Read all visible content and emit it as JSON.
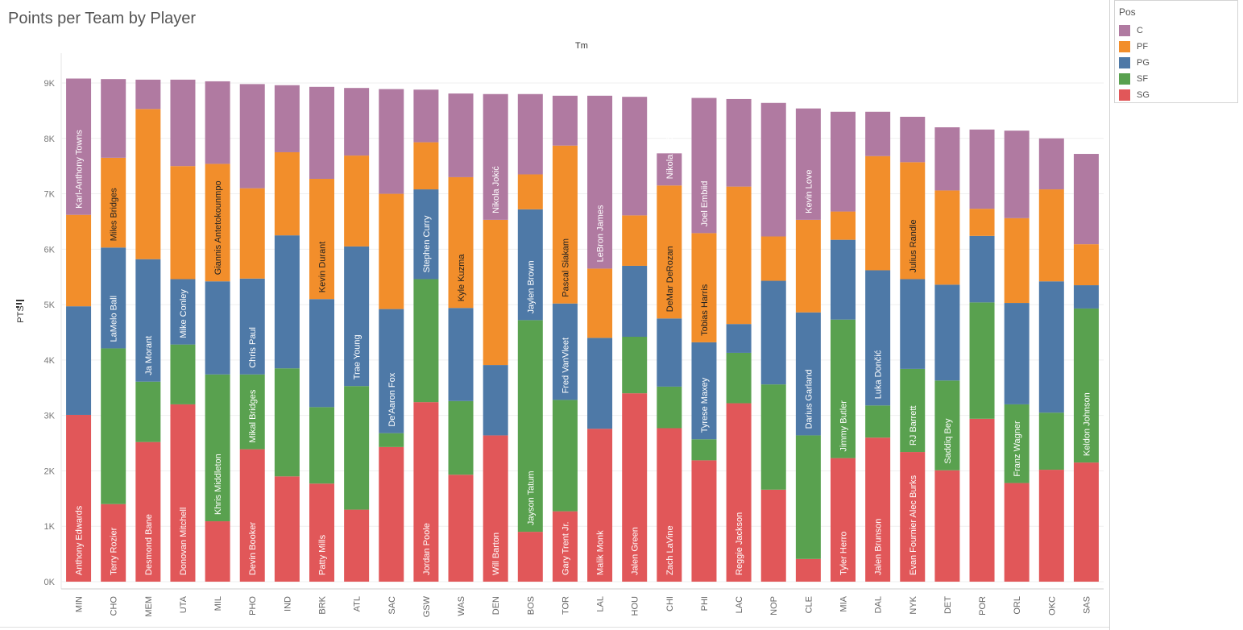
{
  "chart_data": {
    "type": "bar",
    "stacked": true,
    "title": "Points per Team by Player",
    "column_header": "Tm",
    "ylabel": "PTS",
    "ylim": [
      0,
      9250
    ],
    "yticks": [
      0,
      1000,
      2000,
      3000,
      4000,
      5000,
      6000,
      7000,
      8000,
      9000
    ],
    "ytick_labels": [
      "0K",
      "1K",
      "2K",
      "3K",
      "4K",
      "5K",
      "6K",
      "7K",
      "8K",
      "9K"
    ],
    "legend_title": "Pos",
    "stack_order": [
      "SG",
      "SF",
      "PG",
      "PF",
      "C"
    ],
    "legend": [
      {
        "name": "C",
        "color": "#b07aa1"
      },
      {
        "name": "PF",
        "color": "#f28e2b"
      },
      {
        "name": "PG",
        "color": "#4e79a7"
      },
      {
        "name": "SF",
        "color": "#59a14f"
      },
      {
        "name": "SG",
        "color": "#e15759"
      }
    ],
    "teams": [
      {
        "tm": "MIN",
        "values": {
          "SG": 3010,
          "SF": 0,
          "PG": 1960,
          "PF": 1650,
          "C": 2460
        },
        "labels": {
          "SG": "Anthony Edwards",
          "C": "Karl-Anthony Towns"
        }
      },
      {
        "tm": "CHO",
        "values": {
          "SG": 1400,
          "SF": 2810,
          "PG": 1820,
          "PF": 1620,
          "C": 1420
        },
        "labels": {
          "SG": "Terry Rozier",
          "PG": "LaMelo Ball",
          "PF": "Miles Bridges"
        }
      },
      {
        "tm": "MEM",
        "values": {
          "SG": 2520,
          "SF": 1090,
          "PG": 2210,
          "PF": 2710,
          "C": 530
        },
        "labels": {
          "SG": "Desmond Bane",
          "PG": "Ja Morant"
        }
      },
      {
        "tm": "UTA",
        "values": {
          "SG": 3200,
          "SF": 1080,
          "PG": 1180,
          "PF": 2040,
          "C": 1560
        },
        "labels": {
          "SG": "Donovan Mitchell",
          "PG": "Mike Conley"
        }
      },
      {
        "tm": "MIL",
        "values": {
          "SG": 1090,
          "SF": 2650,
          "PG": 1680,
          "PF": 2120,
          "C": 1490
        },
        "labels": {
          "SF": "Khris Middleton",
          "PF": "Giannis Antetokounmpo"
        }
      },
      {
        "tm": "PHO",
        "values": {
          "SG": 2390,
          "SF": 1350,
          "PG": 1730,
          "PF": 1630,
          "C": 1880
        },
        "labels": {
          "SG": "Devin Booker",
          "SF": "Mikal Bridges",
          "PG": "Chris Paul"
        }
      },
      {
        "tm": "IND",
        "values": {
          "SG": 1900,
          "SF": 1950,
          "PG": 2400,
          "PF": 1500,
          "C": 1210
        },
        "labels": {}
      },
      {
        "tm": "BRK",
        "values": {
          "SG": 1770,
          "SF": 1380,
          "PG": 1950,
          "PF": 2170,
          "C": 1660
        },
        "labels": {
          "SG": "Patty Mills",
          "PF": "Kevin Durant"
        }
      },
      {
        "tm": "ATL",
        "values": {
          "SG": 1300,
          "SF": 2230,
          "PG": 2520,
          "PF": 1640,
          "C": 1220
        },
        "labels": {
          "PG": "Trae Young"
        }
      },
      {
        "tm": "SAC",
        "values": {
          "SG": 2430,
          "SF": 250,
          "PG": 2240,
          "PF": 2080,
          "C": 1890
        },
        "labels": {
          "PG": "De'Aaron Fox"
        }
      },
      {
        "tm": "GSW",
        "values": {
          "SG": 3240,
          "SF": 2220,
          "PG": 1620,
          "PF": 850,
          "C": 950
        },
        "labels": {
          "SG": "Jordan Poole",
          "PG": "Stephen Curry"
        }
      },
      {
        "tm": "WAS",
        "values": {
          "SG": 1930,
          "SF": 1330,
          "PG": 1680,
          "PF": 2360,
          "C": 1510
        },
        "labels": {
          "PF": "Kyle Kuzma"
        }
      },
      {
        "tm": "DEN",
        "values": {
          "SG": 2640,
          "SF": 0,
          "PG": 1270,
          "PF": 2620,
          "C": 2270
        },
        "labels": {
          "SG": "Will Barton",
          "C": "Nikola Jokić"
        }
      },
      {
        "tm": "BOS",
        "values": {
          "SG": 900,
          "SF": 3820,
          "PG": 2000,
          "PF": 630,
          "C": 1450
        },
        "labels": {
          "SF": "Jayson Tatum",
          "PG": "Jaylen Brown"
        }
      },
      {
        "tm": "TOR",
        "values": {
          "SG": 1270,
          "SF": 2010,
          "PG": 1740,
          "PF": 2850,
          "C": 900
        },
        "labels": {
          "SG": "Gary Trent Jr.",
          "PG": "Fred VanVleet",
          "PF": "Pascal Siakam"
        }
      },
      {
        "tm": "LAL",
        "values": {
          "SG": 2760,
          "SF": 0,
          "PG": 1640,
          "PF": 1250,
          "C": 3120
        },
        "labels": {
          "SG": "Malik Monk",
          "C": "LeBron James"
        }
      },
      {
        "tm": "HOU",
        "values": {
          "SG": 3400,
          "SF": 1020,
          "PG": 1280,
          "PF": 910,
          "C": 2140
        },
        "labels": {
          "SG": "Jalen Green"
        }
      },
      {
        "tm": "CHI",
        "values": {
          "SG": 2770,
          "SF": 750,
          "PG": 1230,
          "PF": 2400,
          "C": 580
        },
        "labels": {
          "SG": "Zach LaVine",
          "PF": "DeMar DeRozan",
          "C": "Nikola Vučević"
        }
      },
      {
        "tm": "PHI",
        "values": {
          "SG": 2190,
          "SF": 380,
          "PG": 1750,
          "PF": 1970,
          "C": 2440
        },
        "labels": {
          "PG": "Tyrese Maxey",
          "PF": "Tobias Harris",
          "C": "Joel Embiid"
        }
      },
      {
        "tm": "LAC",
        "values": {
          "SG": 3220,
          "SF": 910,
          "PG": 520,
          "PF": 2480,
          "C": 1580
        },
        "labels": {
          "SG": "Reggie Jackson"
        }
      },
      {
        "tm": "NOP",
        "values": {
          "SG": 1660,
          "SF": 1900,
          "PG": 1870,
          "PF": 800,
          "C": 2410
        },
        "labels": {}
      },
      {
        "tm": "CLE",
        "values": {
          "SG": 410,
          "SF": 2230,
          "PG": 2220,
          "PF": 1670,
          "C": 2010
        },
        "labels": {
          "PG": "Darius Garland",
          "C": "Kevin Love"
        }
      },
      {
        "tm": "MIA",
        "values": {
          "SG": 2230,
          "SF": 2500,
          "PG": 1440,
          "PF": 510,
          "C": 1800
        },
        "labels": {
          "SG": "Tyler Herro",
          "SF": "Jimmy Butler"
        }
      },
      {
        "tm": "DAL",
        "values": {
          "SG": 2600,
          "SF": 580,
          "PG": 2440,
          "PF": 2060,
          "C": 800
        },
        "labels": {
          "SG": "Jalen Brunson",
          "PG": "Luka Dončić"
        }
      },
      {
        "tm": "NYK",
        "values": {
          "SG": 2340,
          "SF": 1500,
          "PG": 1620,
          "PF": 2110,
          "C": 820
        },
        "labels": {
          "SG": "Evan Fournier Alec Burks",
          "SF": "RJ Barrett",
          "PF": "Julius Randle"
        }
      },
      {
        "tm": "DET",
        "values": {
          "SG": 2010,
          "SF": 1620,
          "PG": 1730,
          "PF": 1700,
          "C": 1140
        },
        "labels": {
          "SF": "Saddiq Bey"
        }
      },
      {
        "tm": "POR",
        "values": {
          "SG": 2940,
          "SF": 2100,
          "PG": 1200,
          "PF": 490,
          "C": 1430
        },
        "labels": {}
      },
      {
        "tm": "ORL",
        "values": {
          "SG": 1780,
          "SF": 1420,
          "PG": 1830,
          "PF": 1530,
          "C": 1580
        },
        "labels": {
          "SF": "Franz Wagner"
        }
      },
      {
        "tm": "OKC",
        "values": {
          "SG": 2020,
          "SF": 1030,
          "PG": 2370,
          "PF": 1660,
          "C": 920
        },
        "labels": {}
      },
      {
        "tm": "SAS",
        "values": {
          "SG": 2150,
          "SF": 2780,
          "PG": 420,
          "PF": 740,
          "C": 1630
        },
        "labels": {
          "SF": "Keldon Johnson"
        }
      }
    ]
  }
}
